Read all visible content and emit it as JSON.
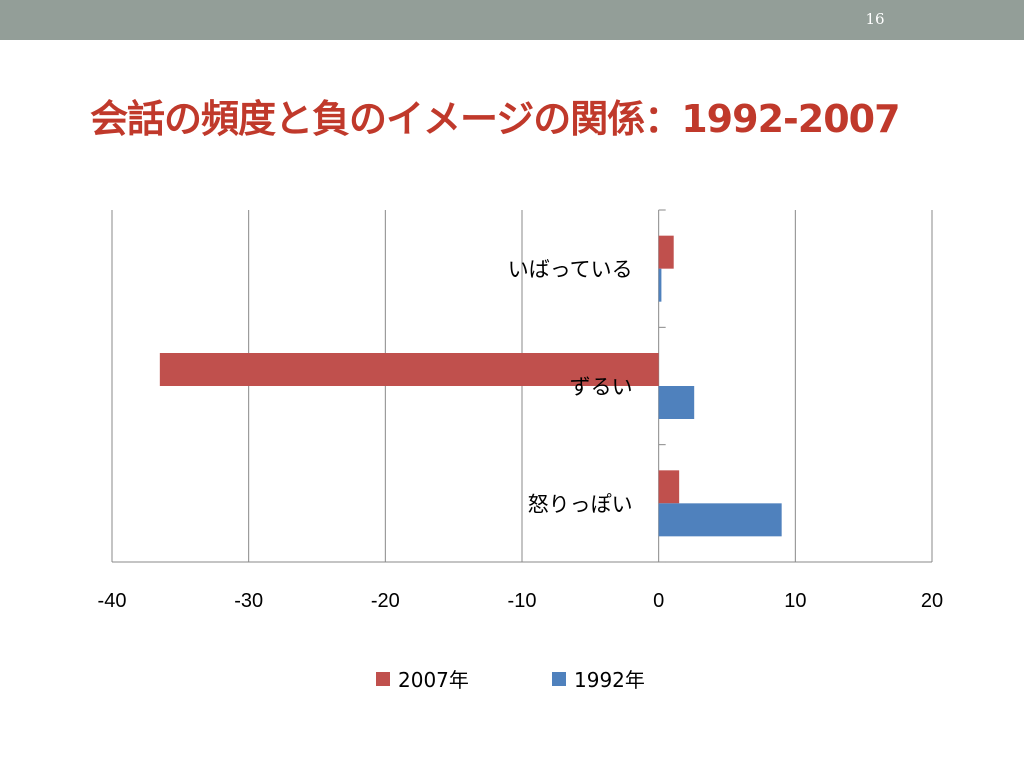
{
  "slide": {
    "number": "16"
  },
  "title": "会話の頻度と負のイメージの関係：1992-2007",
  "colors": {
    "series_2007": "#c0504d",
    "series_1992": "#4f81bd",
    "topbar": "#939e98",
    "title": "#c0392b"
  },
  "chart_data": {
    "type": "bar",
    "orientation": "horizontal",
    "categories": [
      "いばっている",
      "ずるい",
      "怒りっぽい"
    ],
    "series": [
      {
        "name": "2007年",
        "values": [
          1.1,
          -36.5,
          1.5
        ]
      },
      {
        "name": "1992年",
        "values": [
          0.2,
          2.6,
          9.0
        ]
      }
    ],
    "xlim": [
      -40,
      20
    ],
    "xticks": [
      "-40",
      "-30",
      "-20",
      "-10",
      "0",
      "10",
      "20"
    ],
    "grid": true,
    "legend": "bottom"
  }
}
